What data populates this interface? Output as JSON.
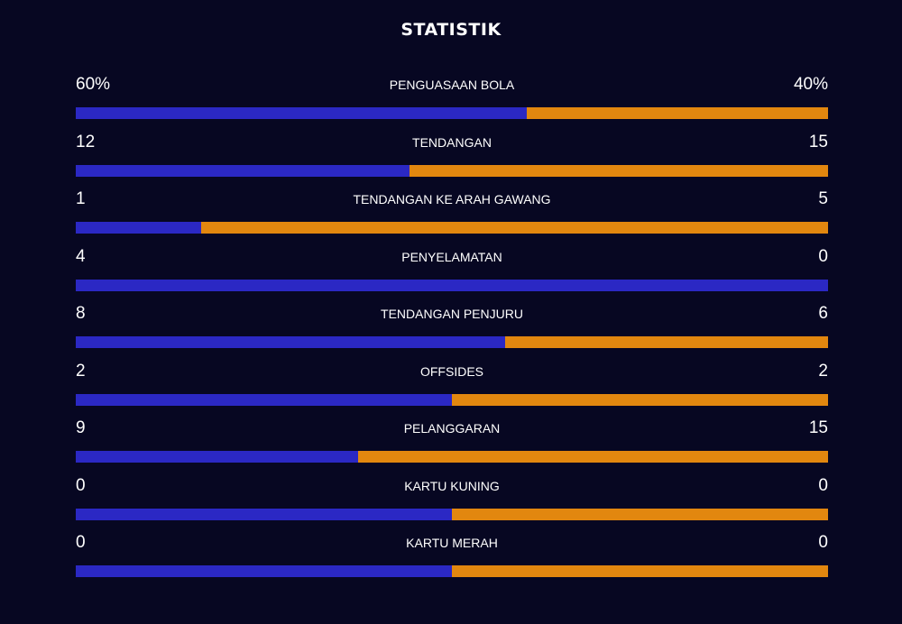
{
  "title": "STATISTIK",
  "colors": {
    "background": "#070722",
    "home": "#2b28c4",
    "away": "#e2870f"
  },
  "stats": [
    {
      "label": "PENGUASAAN BOLA",
      "home": "60%",
      "away": "40%",
      "home_share": 0.6
    },
    {
      "label": "TENDANGAN",
      "home": "12",
      "away": "15",
      "home_share": 0.444
    },
    {
      "label": "TENDANGAN KE ARAH GAWANG",
      "home": "1",
      "away": "5",
      "home_share": 0.167
    },
    {
      "label": "PENYELAMATAN",
      "home": "4",
      "away": "0",
      "home_share": 1.0
    },
    {
      "label": "TENDANGAN PENJURU",
      "home": "8",
      "away": "6",
      "home_share": 0.571
    },
    {
      "label": "OFFSIDES",
      "home": "2",
      "away": "2",
      "home_share": 0.5
    },
    {
      "label": "PELANGGARAN",
      "home": "9",
      "away": "15",
      "home_share": 0.375
    },
    {
      "label": "KARTU KUNING",
      "home": "0",
      "away": "0",
      "home_share": 0.5
    },
    {
      "label": "KARTU MERAH",
      "home": "0",
      "away": "0",
      "home_share": 0.5
    }
  ]
}
